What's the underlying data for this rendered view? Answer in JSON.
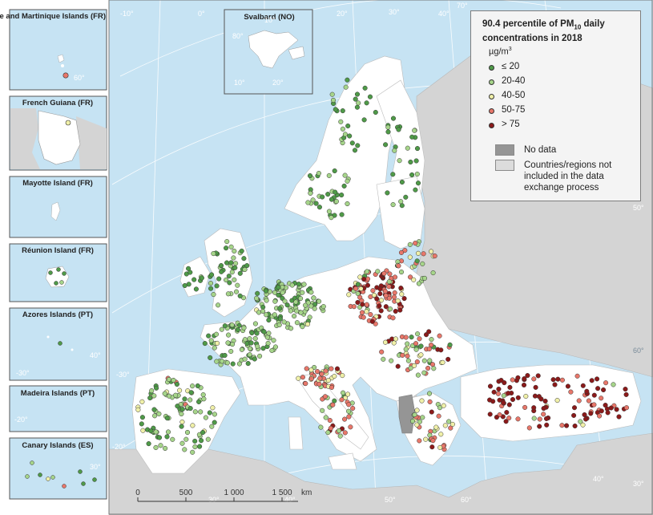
{
  "legend": {
    "title_main": "90.4 percentile of PM",
    "title_sub": "10",
    "title_rest": " daily concentrations in 2018",
    "unit_main": "µg/m",
    "unit_sup": "3",
    "classes": [
      {
        "label": "≤ 20",
        "color": "#4f9a48"
      },
      {
        "label": "20-40",
        "color": "#a6d58a"
      },
      {
        "label": "40-50",
        "color": "#f0f0a8"
      },
      {
        "label": "50-75",
        "color": "#e8776a"
      },
      {
        "label": "> 75",
        "color": "#8b1a1a"
      }
    ],
    "no_data_label": "No data",
    "no_data_color": "#959595",
    "not_included_label": "Countries/regions not included in the data exchange process",
    "not_included_color": "#dcdcdc"
  },
  "insets": [
    {
      "name": "Guadeloupe and Martinique Islands (FR)"
    },
    {
      "name": "French Guiana (FR)"
    },
    {
      "name": "Mayotte Island (FR)"
    },
    {
      "name": "Réunion Island (FR)"
    },
    {
      "name": "Azores Islands (PT)"
    },
    {
      "name": "Madeira Islands (PT)"
    },
    {
      "name": "Canary Islands (ES)"
    },
    {
      "name": "Svalbard (NO)"
    }
  ],
  "graticule_labels": {
    "main": [
      "-30°",
      "-20°",
      "-10°",
      "0°",
      "10°",
      "20°",
      "30°",
      "40°",
      "50°",
      "60°",
      "70°",
      "30°",
      "40°",
      "50°",
      "60°",
      "40°",
      "30°"
    ],
    "svalbard": [
      "10°",
      "20°",
      "30°",
      "80°"
    ],
    "guadeloupe": [
      "60°"
    ],
    "azores": [
      "-30°",
      "40°"
    ],
    "madeira": [
      "-20°"
    ],
    "canary": [
      "30°"
    ]
  },
  "scale": {
    "ticks": [
      "0",
      "500",
      "1 000",
      "1 500"
    ],
    "unit": "km"
  },
  "colors": {
    "sea": "#c6e3f3",
    "land_included": "#ffffff",
    "land_excluded": "#d4d4d4",
    "no_data": "#959595"
  }
}
